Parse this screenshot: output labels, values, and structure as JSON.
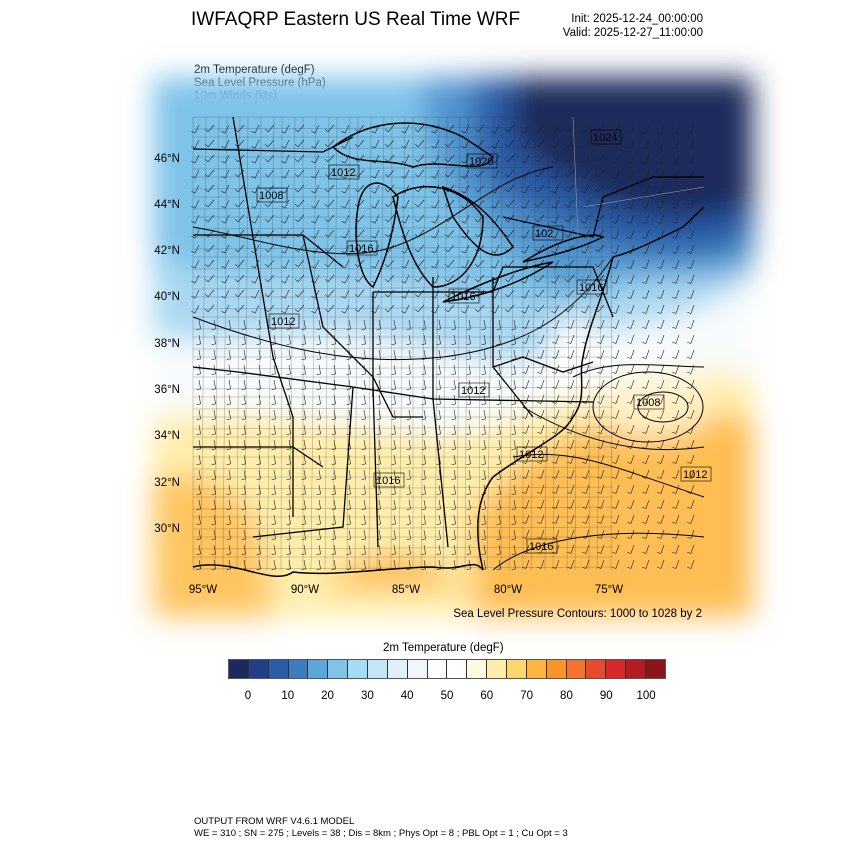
{
  "header": {
    "title": "IWFAQRP Eastern US Real Time WRF",
    "init": "Init: 2025-12-24_00:00:00",
    "valid": "Valid: 2025-12-27_11:00:00"
  },
  "fields": [
    "2m Temperature   (degF)",
    "Sea Level Pressure   (hPa)",
    "10m Winds   (kts)"
  ],
  "map": {
    "lat_labels": [
      "46°N",
      "44°N",
      "42°N",
      "40°N",
      "38°N",
      "36°N",
      "34°N",
      "32°N",
      "30°N"
    ],
    "lon_labels": [
      "95°W",
      "90°W",
      "85°W",
      "80°W",
      "75°W"
    ],
    "contour_labels": [
      "1020",
      "1024",
      "1012",
      "1008",
      "1016",
      "1016",
      "1012",
      "1012",
      "1008",
      "1012",
      "1016",
      "1012",
      "1016",
      "1016",
      "102"
    ],
    "contour_note": "Sea Level Pressure Contours: 1000 to 1028 by 2"
  },
  "colorbar": {
    "title": "2m Temperature  (degF)",
    "labels": [
      "0",
      "10",
      "20",
      "30",
      "40",
      "50",
      "60",
      "70",
      "80",
      "90",
      "100"
    ],
    "colors": [
      "#1b2a5c",
      "#213f86",
      "#2a5ca8",
      "#3d7dbf",
      "#5aa7db",
      "#7ec3e8",
      "#a3dcf5",
      "#c2e6f6",
      "#dff0f8",
      "#eff7fb",
      "#ffffff",
      "#ffffff",
      "#fff8e3",
      "#ffeeab",
      "#ffd66e",
      "#ffb640",
      "#f7942a",
      "#f4732d",
      "#e84b2c",
      "#d7272a",
      "#b51b23",
      "#8b1519"
    ]
  },
  "footer": {
    "line1": "OUTPUT FROM WRF V4.6.1 MODEL",
    "line2": "WE = 310 ; SN = 275 ; Levels = 38 ; Dis = 8km ; Phys Opt = 8 ; PBL Opt = 1 ; Cu Opt = 3"
  }
}
